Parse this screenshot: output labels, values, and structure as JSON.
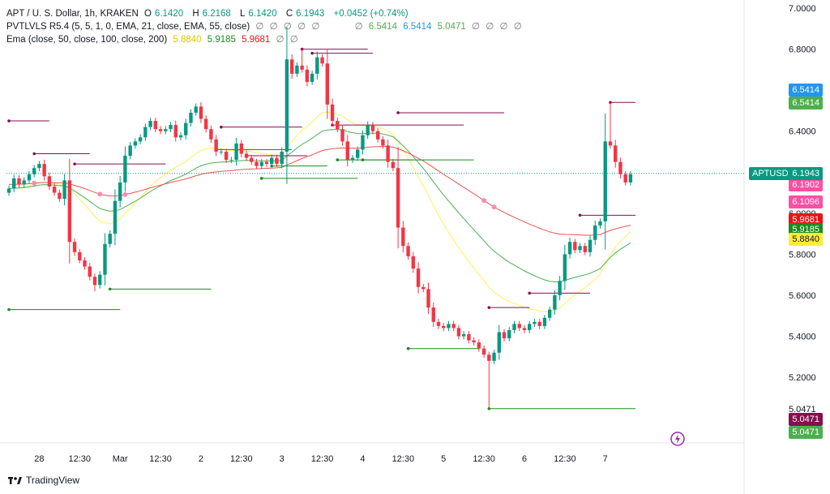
{
  "chart_data": {
    "type": "candlestick",
    "symbol_line": {
      "title": "APT / U. S. Dollar, 1h, KRAKEN",
      "o_label": "O",
      "o": "6.1420",
      "h_label": "H",
      "h": "6.2168",
      "l_label": "L",
      "l": "6.1420",
      "c_label": "C",
      "c": "6.1943",
      "change": "+0.0452 (+0.74%)"
    },
    "indicator_1": {
      "name": "PVTLVLS R5.4 (5, 5, 1, 0, EMA, 21, close, EMA, 55, close)",
      "values": [
        "∅",
        "∅",
        "∅",
        "∅",
        "∅",
        "∅",
        "6.5414",
        "6.5414",
        "5.0471",
        "∅",
        "∅",
        "∅",
        "∅"
      ]
    },
    "indicator_2": {
      "name": "Ema (close, 50, close, 100, close, 200)",
      "values": [
        "5.8840",
        "5.9185",
        "5.9681",
        "∅",
        "∅"
      ]
    },
    "y_axis": {
      "ylim": [
        4.88,
        7.0
      ],
      "ticks": [
        "7.0000",
        "6.8000",
        "6.5414",
        "6.4000",
        "6.0000",
        "5.8000",
        "5.6000",
        "5.4000",
        "5.2000",
        "5.0471"
      ]
    },
    "x_axis": {
      "ticks": [
        {
          "label": "28",
          "bar": 6
        },
        {
          "label": "12:30",
          "bar": 14
        },
        {
          "label": "Mar",
          "bar": 22
        },
        {
          "label": "12:30",
          "bar": 30
        },
        {
          "label": "2",
          "bar": 38
        },
        {
          "label": "12:30",
          "bar": 46
        },
        {
          "label": "3",
          "bar": 54
        },
        {
          "label": "12:30",
          "bar": 62
        },
        {
          "label": "4",
          "bar": 70
        },
        {
          "label": "12:30",
          "bar": 78
        },
        {
          "label": "5",
          "bar": 86
        },
        {
          "label": "12:30",
          "bar": 94
        },
        {
          "label": "6",
          "bar": 102
        },
        {
          "label": "12:30",
          "bar": 110
        },
        {
          "label": "7",
          "bar": 118
        }
      ]
    },
    "closes": [
      6.12,
      6.17,
      6.14,
      6.16,
      6.19,
      6.22,
      6.24,
      6.18,
      6.13,
      6.1,
      6.07,
      6.16,
      5.86,
      5.81,
      5.77,
      5.74,
      5.69,
      5.65,
      5.7,
      5.85,
      5.9,
      6.06,
      6.15,
      6.28,
      6.33,
      6.35,
      6.37,
      6.42,
      6.45,
      6.41,
      6.4,
      6.41,
      6.43,
      6.37,
      6.38,
      6.44,
      6.49,
      6.52,
      6.46,
      6.41,
      6.36,
      6.3,
      6.3,
      6.26,
      6.26,
      6.34,
      6.29,
      6.27,
      6.25,
      6.23,
      6.25,
      6.24,
      6.27,
      6.24,
      6.3,
      6.75,
      6.68,
      6.72,
      6.7,
      6.64,
      6.68,
      6.76,
      6.73,
      6.53,
      6.45,
      6.41,
      6.35,
      6.26,
      6.27,
      6.31,
      6.38,
      6.43,
      6.4,
      6.36,
      6.33,
      6.25,
      6.22,
      5.93,
      5.84,
      5.79,
      5.73,
      5.64,
      5.63,
      5.54,
      5.47,
      5.45,
      5.44,
      5.46,
      5.44,
      5.4,
      5.41,
      5.38,
      5.37,
      5.34,
      5.31,
      5.28,
      5.32,
      5.42,
      5.39,
      5.43,
      5.46,
      5.44,
      5.43,
      5.46,
      5.47,
      5.45,
      5.49,
      5.53,
      5.6,
      5.67,
      5.8,
      5.86,
      5.82,
      5.84,
      5.81,
      5.87,
      5.94,
      5.96,
      6.35,
      6.33,
      6.25,
      6.19,
      6.15,
      6.19
    ],
    "series": [
      {
        "name": "EMA 50",
        "color": "#4caf50"
      },
      {
        "name": "EMA 100",
        "color": "#ffeb3b"
      },
      {
        "name": "EMA 200",
        "color": "#f44336"
      }
    ],
    "price_tags": [
      {
        "value": "6.5414",
        "color": "#2196f3",
        "price": 6.5414,
        "offset": -15
      },
      {
        "value": "6.5414",
        "color": "#4caf50",
        "price": 6.5414,
        "offset": 1
      },
      {
        "value": "6.1902",
        "color": "#ff4fa3",
        "price": 6.1902,
        "offset": 13
      },
      {
        "value": "6.1096",
        "color": "#ff4fa3",
        "price": 6.1096,
        "offset": 14
      },
      {
        "value": "5.9681",
        "color": "#e51616",
        "price": 5.9681,
        "offset": 0
      },
      {
        "value": "5.9185",
        "color": "#1a8c1f",
        "price": 5.9185,
        "offset": 0
      },
      {
        "value": "5.8840",
        "color": "#ffeb3b",
        "price": 5.884,
        "offset": 3
      },
      {
        "value": "5.0471",
        "color": "#880e4f",
        "price": 5.0471,
        "offset": 13
      },
      {
        "value": "5.0471",
        "color": "#4caf50",
        "price": 5.0471,
        "offset": 29
      }
    ],
    "current": {
      "symbol": "APTUSD",
      "value": "6.1943",
      "price": 6.1943,
      "color": "#089981"
    },
    "pivot_lines": [
      {
        "from": 0,
        "to": 8,
        "price": 6.45,
        "kind": "high"
      },
      {
        "from": 5,
        "to": 16,
        "price": 6.29,
        "kind": "high"
      },
      {
        "from": 13,
        "to": 31,
        "price": 6.24,
        "kind": "high"
      },
      {
        "from": 0,
        "to": 22,
        "price": 5.53,
        "kind": "low"
      },
      {
        "from": 20,
        "to": 40,
        "price": 5.63,
        "kind": "low"
      },
      {
        "from": 42,
        "to": 58,
        "price": 6.42,
        "kind": "high"
      },
      {
        "from": 41,
        "to": 56,
        "price": 6.31,
        "kind": "low"
      },
      {
        "from": 47,
        "to": 59,
        "price": 6.28,
        "kind": "high"
      },
      {
        "from": 50,
        "to": 69,
        "price": 6.17,
        "kind": "low"
      },
      {
        "from": 52,
        "to": 63,
        "price": 6.23,
        "kind": "low"
      },
      {
        "from": 64,
        "to": 90,
        "price": 6.43,
        "kind": "high"
      },
      {
        "from": 65,
        "to": 80,
        "price": 6.26,
        "kind": "low"
      },
      {
        "from": 70,
        "to": 92,
        "price": 6.26,
        "kind": "low"
      },
      {
        "from": 58,
        "to": 71,
        "price": 6.8,
        "kind": "high"
      },
      {
        "from": 60,
        "to": 72,
        "price": 6.78,
        "kind": "high"
      },
      {
        "from": 77,
        "to": 98,
        "price": 6.49,
        "kind": "high"
      },
      {
        "from": 79,
        "to": 93,
        "price": 5.34,
        "kind": "low"
      },
      {
        "from": 95,
        "to": 103,
        "price": 5.54,
        "kind": "high"
      },
      {
        "from": 95,
        "to": 124,
        "price": 5.047,
        "kind": "low"
      },
      {
        "from": 103,
        "to": 115,
        "price": 5.61,
        "kind": "high"
      },
      {
        "from": 113,
        "to": 124,
        "price": 5.99,
        "kind": "high"
      },
      {
        "from": 119,
        "to": 124,
        "price": 6.54,
        "kind": "high"
      }
    ]
  },
  "footer": {
    "brand": "TradingView"
  }
}
